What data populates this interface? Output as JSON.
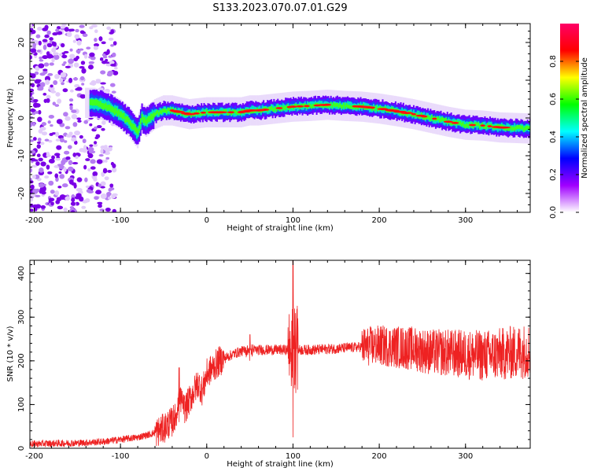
{
  "title": "S133.2023.070.07.01.G29",
  "chart_data": [
    {
      "type": "heatmap",
      "xlabel": "Height of straight line (km)",
      "ylabel": "Frequency (Hz)",
      "xlim": [
        -205,
        375
      ],
      "ylim": [
        -25,
        25
      ],
      "x_ticks": [
        -200,
        -100,
        0,
        100,
        200,
        300
      ],
      "y_ticks": [
        -20,
        -10,
        0,
        10,
        20
      ],
      "grid": false,
      "colorbar": {
        "label": "Normalized spectral amplitude",
        "range": [
          0,
          1
        ],
        "ticks": [
          0.0,
          0.2,
          0.4,
          0.6,
          0.8
        ],
        "colors": [
          "#ffffff",
          "#a000ff",
          "#0000ff",
          "#00ffff",
          "#00ff00",
          "#ffff00",
          "#ff0000",
          "#ff0066"
        ]
      },
      "ridge": {
        "x": [
          -130,
          -115,
          -100,
          -90,
          -80,
          -75,
          -70,
          -60,
          -50,
          -40,
          -30,
          -20,
          0,
          20,
          40,
          50,
          60,
          80,
          100,
          120,
          140,
          160,
          180,
          200,
          220,
          240,
          260,
          280,
          300,
          320,
          340,
          375
        ],
        "frequency": [
          4,
          3,
          1,
          -1,
          -4,
          0,
          -1,
          1,
          2,
          2,
          1.5,
          1,
          1.5,
          1.5,
          1.5,
          2,
          2,
          2.5,
          3,
          3.2,
          3.5,
          3.2,
          3,
          2.5,
          1.8,
          1,
          0,
          -1,
          -1.8,
          -2,
          -2.5,
          -2.8
        ]
      }
    },
    {
      "type": "line",
      "xlabel": "Height of straight line (km)",
      "ylabel": "SNR (10 * v/v)",
      "xlim": [
        -205,
        375
      ],
      "ylim": [
        0,
        430
      ],
      "x_ticks": [
        -200,
        -100,
        0,
        100,
        200,
        300
      ],
      "y_ticks": [
        0,
        100,
        200,
        300,
        400
      ],
      "grid": false,
      "line_color": "#ee2222",
      "series": [
        {
          "x": [
            -205,
            -180,
            -150,
            -120,
            -100,
            -80,
            -70,
            -60,
            -50,
            -45,
            -40,
            -35,
            -32,
            -30,
            -25,
            -20,
            -15,
            -10,
            -5,
            0,
            5,
            10,
            15,
            20,
            25,
            30,
            40,
            60,
            80,
            95,
            100,
            105,
            120,
            150,
            180,
            200,
            220,
            240,
            260,
            280,
            300,
            320,
            340,
            360,
            375
          ],
          "values": [
            10,
            11,
            12,
            15,
            20,
            25,
            30,
            35,
            45,
            55,
            60,
            80,
            130,
            110,
            90,
            110,
            130,
            150,
            130,
            170,
            180,
            190,
            200,
            205,
            210,
            215,
            222,
            225,
            225,
            225,
            230,
            225,
            225,
            228,
            232,
            235,
            232,
            228,
            220,
            218,
            215,
            212,
            215,
            220,
            225
          ]
        }
      ],
      "spikes": [
        {
          "x": 100,
          "high": 430,
          "low": 25
        },
        {
          "x": -32,
          "high": 185,
          "low": 60
        },
        {
          "x": 50,
          "high": 260,
          "low": 200
        }
      ]
    }
  ]
}
